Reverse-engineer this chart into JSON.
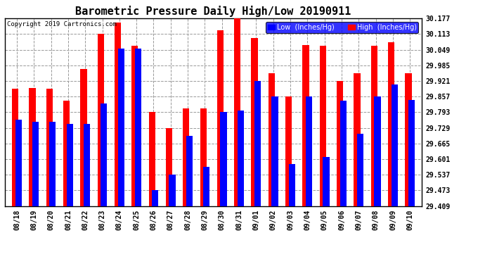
{
  "title": "Barometric Pressure Daily High/Low 20190911",
  "copyright": "Copyright 2019 Cartronics.com",
  "legend_low": "Low  (Inches/Hg)",
  "legend_high": "High  (Inches/Hg)",
  "dates": [
    "08/18",
    "08/19",
    "08/20",
    "08/21",
    "08/22",
    "08/23",
    "08/24",
    "08/25",
    "08/26",
    "08/27",
    "08/28",
    "08/29",
    "08/30",
    "08/31",
    "09/01",
    "09/02",
    "09/03",
    "09/04",
    "09/05",
    "09/06",
    "09/07",
    "09/08",
    "09/09",
    "09/10"
  ],
  "low_values": [
    29.763,
    29.755,
    29.755,
    29.745,
    29.745,
    29.83,
    30.055,
    30.055,
    29.473,
    29.537,
    29.697,
    29.569,
    29.793,
    29.8,
    29.921,
    29.857,
    29.58,
    29.857,
    29.61,
    29.841,
    29.706,
    29.857,
    29.907,
    29.843
  ],
  "high_values": [
    29.889,
    29.893,
    29.889,
    29.841,
    29.969,
    30.113,
    30.161,
    30.065,
    29.793,
    29.729,
    29.809,
    29.809,
    30.129,
    30.177,
    30.097,
    29.953,
    29.857,
    30.069,
    30.065,
    29.921,
    29.953,
    30.065,
    30.081,
    29.953
  ],
  "ylim_min": 29.409,
  "ylim_max": 30.177,
  "yticks": [
    29.409,
    29.473,
    29.537,
    29.601,
    29.665,
    29.729,
    29.793,
    29.857,
    29.921,
    29.985,
    30.049,
    30.113,
    30.177
  ],
  "bar_width": 0.38,
  "low_color": "#0000ff",
  "high_color": "#ff0000",
  "bg_color": "#ffffff",
  "grid_color": "#999999",
  "title_fontsize": 11,
  "copyright_fontsize": 6.5,
  "tick_fontsize": 7,
  "legend_fontsize": 7
}
